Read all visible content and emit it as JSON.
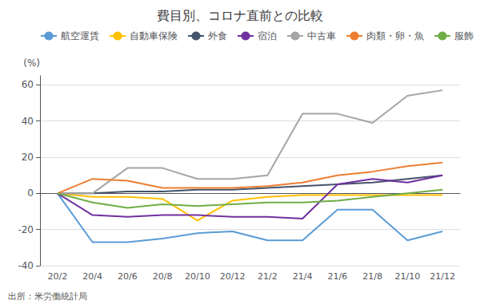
{
  "chart_data": {
    "type": "line",
    "title": "費目別、コロナ直前との比較",
    "ylabel": "(%)",
    "annotations": [
      "出所：米労働統計局"
    ],
    "categories": [
      "20/2",
      "20/4",
      "20/6",
      "20/8",
      "20/10",
      "20/12",
      "21/2",
      "21/4",
      "21/6",
      "21/8",
      "21/10",
      "21/12"
    ],
    "series": [
      {
        "name": "航空運賃",
        "color": "#5B9BD5",
        "values": [
          0,
          -27,
          -27,
          -25,
          -22,
          -21,
          -26,
          -26,
          -9,
          -9,
          -26,
          -21
        ]
      },
      {
        "name": "自動車保険",
        "color": "#FFC000",
        "values": [
          0,
          -2,
          -2,
          -3,
          -15,
          -4,
          -2,
          -1,
          -1,
          -1,
          -1,
          -1
        ]
      },
      {
        "name": "外食",
        "color": "#44546A",
        "values": [
          0,
          0,
          1,
          1,
          2,
          2,
          3,
          4,
          5,
          6,
          8,
          10
        ]
      },
      {
        "name": "宿泊",
        "color": "#7030A0",
        "values": [
          0,
          -12,
          -13,
          -12,
          -12,
          -13,
          -13,
          -14,
          5,
          8,
          6,
          10
        ]
      },
      {
        "name": "中古車",
        "color": "#A5A5A5",
        "values": [
          0,
          0,
          14,
          14,
          8,
          8,
          10,
          44,
          44,
          39,
          54,
          57
        ]
      },
      {
        "name": "肉類・卵・魚",
        "color": "#ED7D31",
        "values": [
          0,
          8,
          7,
          3,
          3,
          3,
          4,
          6,
          10,
          12,
          15,
          17
        ]
      },
      {
        "name": "服飾",
        "color": "#70AD47",
        "values": [
          0,
          -5,
          -8,
          -6,
          -7,
          -6,
          -5,
          -5,
          -4,
          -2,
          0,
          2
        ]
      }
    ],
    "ylim": [
      -40,
      65
    ],
    "yticks": [
      -40,
      -20,
      0,
      20,
      40,
      60
    ],
    "grid": true,
    "legend": "upper left"
  }
}
